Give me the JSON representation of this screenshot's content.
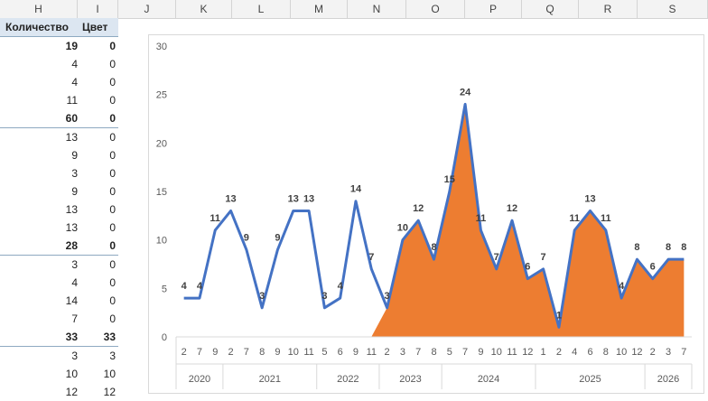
{
  "columns": [
    "H",
    "I",
    "J",
    "K",
    "L",
    "M",
    "N",
    "O",
    "P",
    "Q",
    "R",
    "S"
  ],
  "table": {
    "headers": {
      "quantity": "Количество",
      "color": "Цвет"
    },
    "rows": [
      {
        "q": "19",
        "c": "0",
        "bold": true
      },
      {
        "q": "4",
        "c": "0"
      },
      {
        "q": "4",
        "c": "0"
      },
      {
        "q": "11",
        "c": "0"
      },
      {
        "q": "60",
        "c": "0",
        "bold": true
      },
      {
        "q": "13",
        "c": "0",
        "sep": true
      },
      {
        "q": "9",
        "c": "0"
      },
      {
        "q": "3",
        "c": "0"
      },
      {
        "q": "9",
        "c": "0"
      },
      {
        "q": "13",
        "c": "0"
      },
      {
        "q": "13",
        "c": "0"
      },
      {
        "q": "28",
        "c": "0",
        "bold": true
      },
      {
        "q": "3",
        "c": "0",
        "sep": true
      },
      {
        "q": "4",
        "c": "0"
      },
      {
        "q": "14",
        "c": "0"
      },
      {
        "q": "7",
        "c": "0"
      },
      {
        "q": "33",
        "c": "33",
        "bold": true
      },
      {
        "q": "3",
        "c": "3",
        "sep": true
      },
      {
        "q": "10",
        "c": "10"
      },
      {
        "q": "12",
        "c": "12"
      }
    ]
  },
  "chart_data": {
    "type": "line",
    "ylim": [
      0,
      30
    ],
    "yticks": [
      0,
      5,
      10,
      15,
      20,
      25,
      30
    ],
    "months": [
      "2",
      "7",
      "9",
      "2",
      "7",
      "8",
      "9",
      "10",
      "11",
      "5",
      "6",
      "9",
      "11",
      "2",
      "3",
      "7",
      "8",
      "5",
      "7",
      "9",
      "10",
      "11",
      "12",
      "1",
      "2",
      "4",
      "6",
      "8",
      "10",
      "12",
      "2",
      "3",
      "7"
    ],
    "years": [
      {
        "label": "2020",
        "count": 3
      },
      {
        "label": "2021",
        "count": 6
      },
      {
        "label": "2022",
        "count": 4
      },
      {
        "label": "2023",
        "count": 4
      },
      {
        "label": "2024",
        "count": 6
      },
      {
        "label": "2025",
        "count": 7
      },
      {
        "label": "2026",
        "count": 3
      }
    ],
    "series": [
      {
        "values": [
          4,
          4,
          11,
          13,
          9,
          3,
          9,
          13,
          13,
          3,
          4,
          14,
          7,
          3,
          10,
          12,
          8,
          15,
          24,
          11,
          7,
          12,
          6,
          7,
          1,
          11,
          13,
          11,
          4,
          8,
          6,
          8,
          8
        ]
      },
      {
        "values": [
          0,
          0,
          0,
          0,
          0,
          0,
          0,
          0,
          0,
          0,
          0,
          0,
          0,
          3,
          10,
          12,
          8,
          15,
          24,
          11,
          7,
          12,
          6,
          7,
          1,
          11,
          13,
          11,
          4,
          8,
          6,
          8,
          8
        ]
      }
    ],
    "colors": {
      "line": "#4472c4",
      "area": "#ed7d31",
      "grid": "#d9d9d9",
      "text": "#595959",
      "label": "#404040"
    }
  }
}
